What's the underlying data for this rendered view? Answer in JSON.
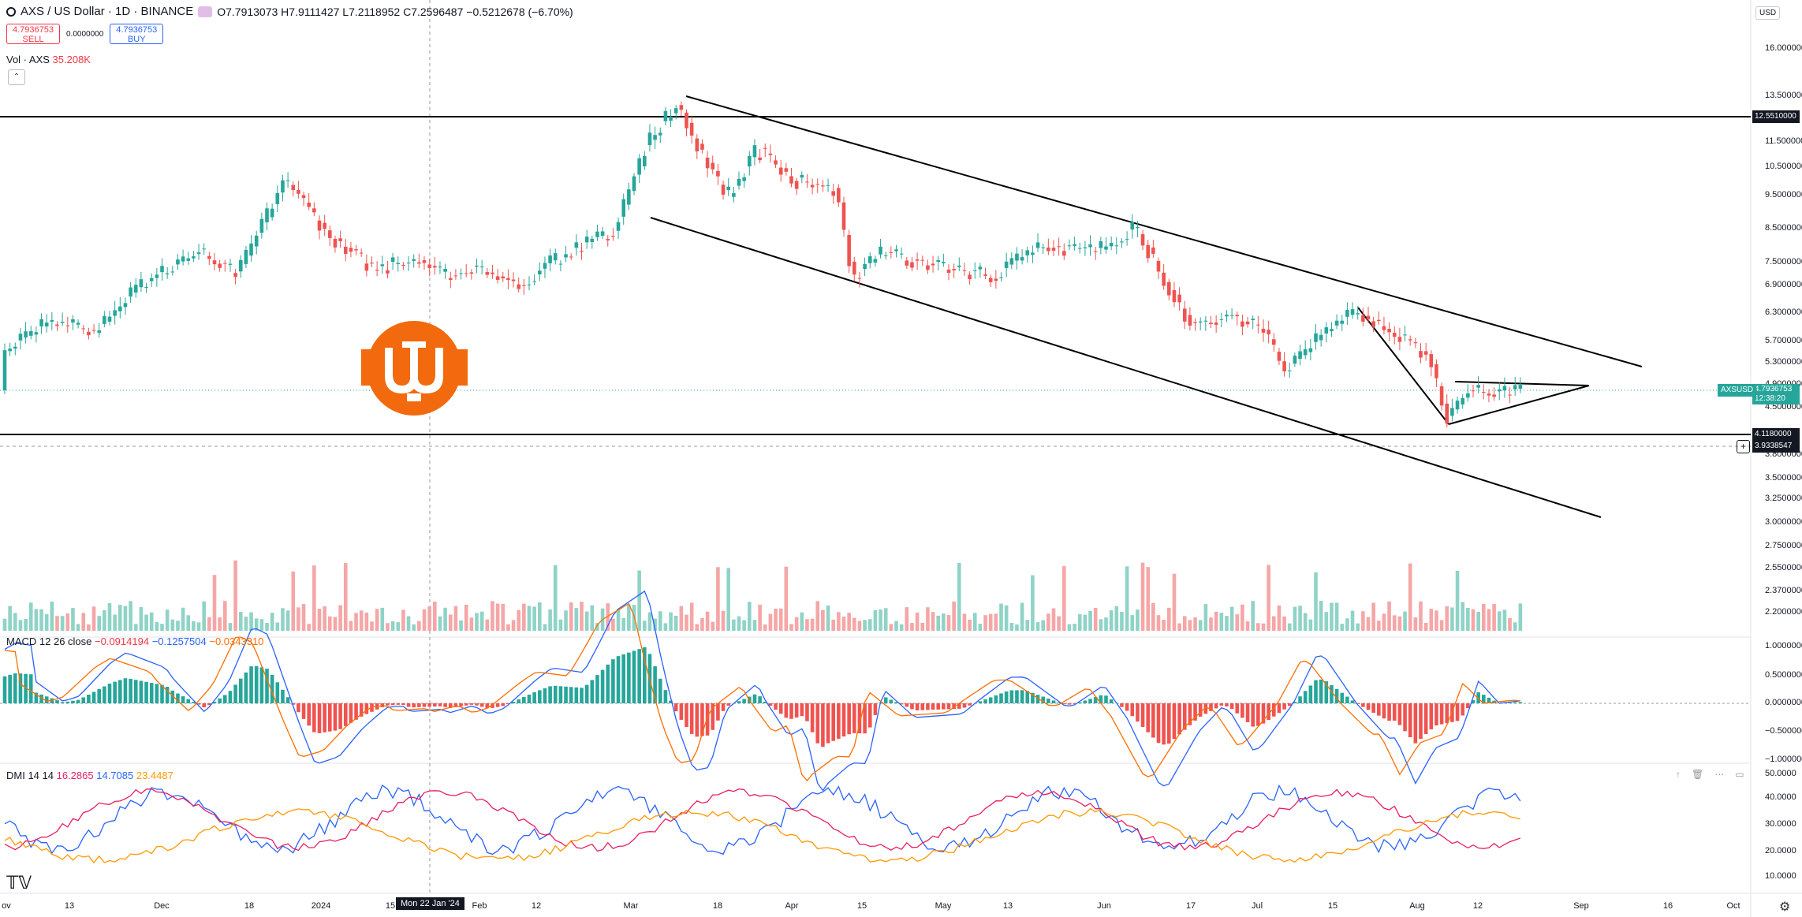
{
  "header": {
    "symbol": "AXS / US Dollar · 1D · BINANCE",
    "ohlc": "O7.7913073 H7.9111427 L7.2118952 C7.2596487 −0.5212678 (−6.70%)"
  },
  "trade": {
    "sell_price": "4.7936753",
    "sell_label": "SELL",
    "spread": "0.0000000",
    "buy_price": "4.7936753",
    "buy_label": "BUY"
  },
  "volume": {
    "label": "Vol · AXS",
    "value": "35.208K"
  },
  "macd": {
    "label": "MACD 12 26 close",
    "v1": "−0.0914194",
    "v2": "−0.1257504",
    "v3": "−0.0343310"
  },
  "dmi": {
    "label": "DMI 14 14",
    "v1": "16.2865",
    "v2": "14.7085",
    "v3": "23.4487"
  },
  "price_axis": {
    "currency": "USD",
    "ticks": [
      "16.0000000",
      "13.5000000",
      "11.5000000",
      "10.5000000",
      "9.5000000",
      "8.5000000",
      "7.5000000",
      "6.9000000",
      "6.3000000",
      "5.7000000",
      "5.3000000",
      "4.9000000",
      "4.5000000",
      "3.8000000",
      "3.5000000",
      "3.2500000",
      "3.0000000",
      "2.7500000",
      "2.5500000",
      "2.3700000",
      "2.2000000"
    ],
    "tags": {
      "level_high": "12.5510000",
      "last": "4.7936753",
      "countdown": "12:38:20",
      "level_low": "4.1180000",
      "cursor": "3.9338547",
      "symbol_tag": "AXSUSD"
    }
  },
  "macd_axis": {
    "ticks": [
      "1.0000000",
      "0.5000000",
      "0.0000000",
      "−0.5000000",
      "−1.0000000"
    ]
  },
  "dmi_axis": {
    "ticks": [
      "50.0000",
      "40.0000",
      "30.0000",
      "20.0000",
      "10.0000"
    ]
  },
  "time_axis": {
    "ticks": [
      "ov",
      "13",
      "Dec",
      "18",
      "2024",
      "15",
      "Feb",
      "12",
      "Mar",
      "18",
      "Apr",
      "15",
      "May",
      "13",
      "Jun",
      "17",
      "Jul",
      "15",
      "Aug",
      "12",
      "Sep",
      "16",
      "Oct"
    ],
    "cursor_label": "Mon 22 Jan '24"
  },
  "icons": {
    "logo": "tradingview-logo",
    "settings": "gear-icon"
  },
  "colors": {
    "up": "#26a69a",
    "down": "#ef5350",
    "macd": "#2962ff",
    "signal": "#ff6d00",
    "dmi_plus": "#2962ff",
    "dmi_minus": "#e91e63",
    "adx": "#ff9800"
  }
}
